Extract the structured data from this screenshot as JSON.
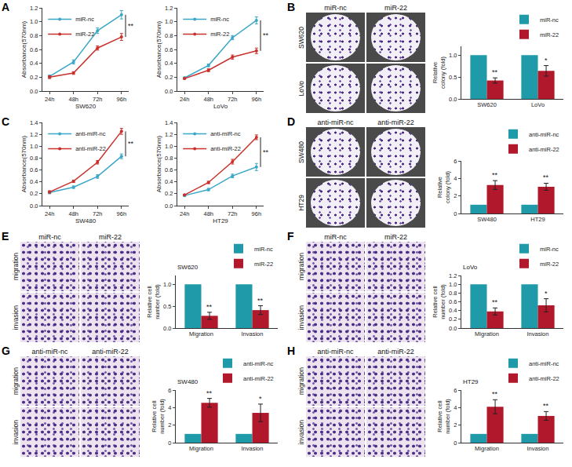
{
  "panels": [
    "A",
    "B",
    "C",
    "D",
    "E",
    "F",
    "G",
    "H"
  ],
  "images": [
    {
      "panel": "B",
      "type": "plate",
      "columns": [
        "miR-nc",
        "miR-22"
      ],
      "rows": [
        "SW620",
        "LoVo"
      ]
    },
    {
      "panel": "D",
      "type": "plate",
      "columns": [
        "anti-miR-nc",
        "anti-miR-22"
      ],
      "rows": [
        "SW480",
        "HT29"
      ]
    },
    {
      "panel": "E",
      "type": "micrograph",
      "columns": [
        "miR-nc",
        "miR-22"
      ],
      "rows": [
        "migration",
        "invasion"
      ]
    },
    {
      "panel": "F",
      "type": "micrograph",
      "columns": [
        "miR-nc",
        "miR-22"
      ],
      "rows": [
        "migration",
        "invasion"
      ]
    },
    {
      "panel": "G",
      "type": "micrograph",
      "columns": [
        "anti-miR-nc",
        "anti-miR-22"
      ],
      "rows": [
        "migration",
        "invasion"
      ]
    },
    {
      "panel": "H",
      "type": "micrograph",
      "columns": [
        "anti-miR-nc",
        "anti-miR-22"
      ],
      "rows": [
        "migration",
        "invasion"
      ]
    }
  ],
  "chart_data": [
    {
      "panel": "A",
      "type": "line",
      "x_label": "SW620",
      "y_label": "Absorbance(570nm)",
      "categories": [
        "24h",
        "48h",
        "72h",
        "96h"
      ],
      "series": [
        {
          "name": "miR-nc",
          "color": "#3ba7c6",
          "values": [
            0.21,
            0.42,
            0.87,
            1.1
          ],
          "errors": [
            0.02,
            0.03,
            0.04,
            0.06
          ]
        },
        {
          "name": "miR-22",
          "color": "#c9302c",
          "values": [
            0.2,
            0.26,
            0.62,
            0.78
          ],
          "errors": [
            0.02,
            0.02,
            0.03,
            0.05
          ]
        }
      ],
      "ylim": [
        0,
        1.2
      ],
      "yticks": [
        {
          "value": 0,
          "label": "0.0"
        },
        0.2,
        0.4,
        0.6,
        0.8,
        {
          "value": 1,
          "label": "1.0"
        },
        1.2
      ],
      "legend": "top left",
      "grid": false,
      "significance": "**"
    },
    {
      "panel": "A",
      "type": "line",
      "x_label": "LoVo",
      "y_label": "Absorbance(570nm)",
      "categories": [
        "24h",
        "48h",
        "72h",
        "96h"
      ],
      "series": [
        {
          "name": "miR-nc",
          "color": "#3ba7c6",
          "values": [
            0.19,
            0.37,
            0.77,
            1.02
          ],
          "errors": [
            0.01,
            0.02,
            0.03,
            0.05
          ]
        },
        {
          "name": "miR-22",
          "color": "#c9302c",
          "values": [
            0.18,
            0.3,
            0.49,
            0.58
          ],
          "errors": [
            0.01,
            0.02,
            0.03,
            0.04
          ]
        }
      ],
      "ylim": [
        0,
        1.2
      ],
      "yticks": [
        {
          "value": 0,
          "label": "0.0"
        },
        0.2,
        0.4,
        0.6,
        0.8,
        {
          "value": 1,
          "label": "1.0"
        },
        1.2
      ],
      "legend": "top left",
      "grid": false,
      "significance": "**"
    },
    {
      "panel": "B",
      "type": "bar",
      "y_label": "Relative colony (fold)",
      "categories": [
        "SW620",
        "LoVo"
      ],
      "series": [
        {
          "name": "miR-nc",
          "color": "#1f9aa8",
          "values": [
            1,
            1
          ]
        },
        {
          "name": "miR-22",
          "color": "#b2182b",
          "values": [
            0.42,
            0.64
          ],
          "errors": [
            0.06,
            0.12
          ],
          "significance": [
            "**",
            "*"
          ]
        }
      ],
      "ylim": [
        0,
        1.2
      ],
      "yticks": [
        {
          "value": 0,
          "label": "0.0"
        },
        0.5,
        {
          "value": 1,
          "label": "1.0"
        }
      ],
      "legend": "top right",
      "grid": false
    },
    {
      "panel": "C",
      "type": "line",
      "x_label": "SW480",
      "y_label": "Absorbance(570nm)",
      "categories": [
        "24h",
        "48h",
        "72h",
        "96h"
      ],
      "series": [
        {
          "name": "anti-miR-nc",
          "color": "#3ba7c6",
          "values": [
            0.22,
            0.31,
            0.49,
            0.83
          ],
          "errors": [
            0.02,
            0.02,
            0.03,
            0.04
          ]
        },
        {
          "name": "anti-miR-22",
          "color": "#c9302c",
          "values": [
            0.23,
            0.41,
            0.73,
            1.25
          ],
          "errors": [
            0.02,
            0.02,
            0.03,
            0.05
          ]
        }
      ],
      "ylim": [
        0,
        1.4
      ],
      "yticks": [
        {
          "value": 0,
          "label": "0.0"
        },
        0.2,
        0.4,
        0.6,
        0.8,
        {
          "value": 1,
          "label": "1.0"
        },
        1.2,
        1.4
      ],
      "legend": "top left",
      "grid": false,
      "significance": "**"
    },
    {
      "panel": "C",
      "type": "line",
      "x_label": "HT29",
      "y_label": "Absorbance(570nm)",
      "categories": [
        "24h",
        "48h",
        "72h",
        "96h"
      ],
      "series": [
        {
          "name": "anti-miR-nc",
          "color": "#3ba7c6",
          "values": [
            0.17,
            0.27,
            0.5,
            0.65
          ],
          "errors": [
            0.01,
            0.02,
            0.03,
            0.06
          ]
        },
        {
          "name": "anti-miR-22",
          "color": "#c9302c",
          "values": [
            0.18,
            0.39,
            0.74,
            1.15
          ],
          "errors": [
            0.01,
            0.02,
            0.04,
            0.04
          ]
        }
      ],
      "ylim": [
        0,
        1.4
      ],
      "yticks": [
        {
          "value": 0,
          "label": "0.0"
        },
        0.2,
        0.4,
        0.6,
        0.8,
        {
          "value": 1,
          "label": "1.0"
        },
        1.2,
        1.4
      ],
      "legend": "top left",
      "grid": false,
      "significance": "**"
    },
    {
      "panel": "D",
      "type": "bar",
      "y_label": "Relative colony (fold)",
      "categories": [
        "SW480",
        "HT29"
      ],
      "series": [
        {
          "name": "anti-miR-nc",
          "color": "#1f9aa8",
          "values": [
            1,
            1
          ]
        },
        {
          "name": "anti-miR-22",
          "color": "#b2182b",
          "values": [
            3.25,
            3.05
          ],
          "errors": [
            0.5,
            0.4
          ],
          "significance": [
            "**",
            "**"
          ]
        }
      ],
      "ylim": [
        0,
        6
      ],
      "yticks": [
        0,
        2,
        4,
        6
      ],
      "legend": "top right",
      "grid": false
    },
    {
      "panel": "E",
      "type": "bar",
      "title": "SW620",
      "y_label": "Relative cell number (fold)",
      "categories": [
        "Migration",
        "Invasion"
      ],
      "series": [
        {
          "name": "miR-nc",
          "color": "#1f9aa8",
          "values": [
            1,
            1
          ]
        },
        {
          "name": "miR-22",
          "color": "#b2182b",
          "values": [
            0.28,
            0.41
          ],
          "errors": [
            0.08,
            0.1
          ],
          "significance": [
            "**",
            "**"
          ]
        }
      ],
      "ylim": [
        0,
        1.2
      ],
      "yticks": [
        {
          "value": 0,
          "label": "0.0"
        },
        0.5,
        {
          "value": 1,
          "label": "1.0"
        }
      ],
      "legend": "top right",
      "grid": false
    },
    {
      "panel": "F",
      "type": "bar",
      "title": "LoVo",
      "y_label": "Relative cell number (fold)",
      "categories": [
        "Migration",
        "Invasion"
      ],
      "series": [
        {
          "name": "miR-nc",
          "color": "#1f9aa8",
          "values": [
            1,
            1
          ]
        },
        {
          "name": "miR-22",
          "color": "#b2182b",
          "values": [
            0.38,
            0.52
          ],
          "errors": [
            0.08,
            0.15
          ],
          "significance": [
            "**",
            "*"
          ]
        }
      ],
      "ylim": [
        0,
        1.2
      ],
      "yticks": [
        {
          "value": 0,
          "label": "0.0"
        },
        0.2,
        0.4,
        0.6,
        0.8,
        {
          "value": 1,
          "label": "1.0"
        },
        1.2
      ],
      "legend": "top right",
      "grid": false
    },
    {
      "panel": "G",
      "type": "bar",
      "title": "SW480",
      "y_label": "Relative cell number (fold)",
      "categories": [
        "Migration",
        "Invasion"
      ],
      "series": [
        {
          "name": "anti-miR-nc",
          "color": "#1f9aa8",
          "values": [
            1,
            1
          ]
        },
        {
          "name": "anti-miR-22",
          "color": "#b2182b",
          "values": [
            4.55,
            3.4
          ],
          "errors": [
            0.5,
            1.0
          ],
          "significance": [
            "**",
            "*"
          ]
        }
      ],
      "ylim": [
        0,
        6
      ],
      "yticks": [
        0,
        2,
        4,
        6
      ],
      "legend": "top right",
      "grid": false
    },
    {
      "panel": "H",
      "type": "bar",
      "title": "HT29",
      "y_label": "Relative cell number (fold)",
      "categories": [
        "Migration",
        "Invasion"
      ],
      "series": [
        {
          "name": "anti-miR-nc",
          "color": "#1f9aa8",
          "values": [
            1,
            1
          ]
        },
        {
          "name": "anti-miR-22",
          "color": "#b2182b",
          "values": [
            4.1,
            3.05
          ],
          "errors": [
            0.8,
            0.5
          ],
          "significance": [
            "**",
            "**"
          ]
        }
      ],
      "ylim": [
        0,
        6
      ],
      "yticks": [
        0,
        2,
        4,
        6
      ],
      "legend": "top right",
      "grid": false
    }
  ]
}
